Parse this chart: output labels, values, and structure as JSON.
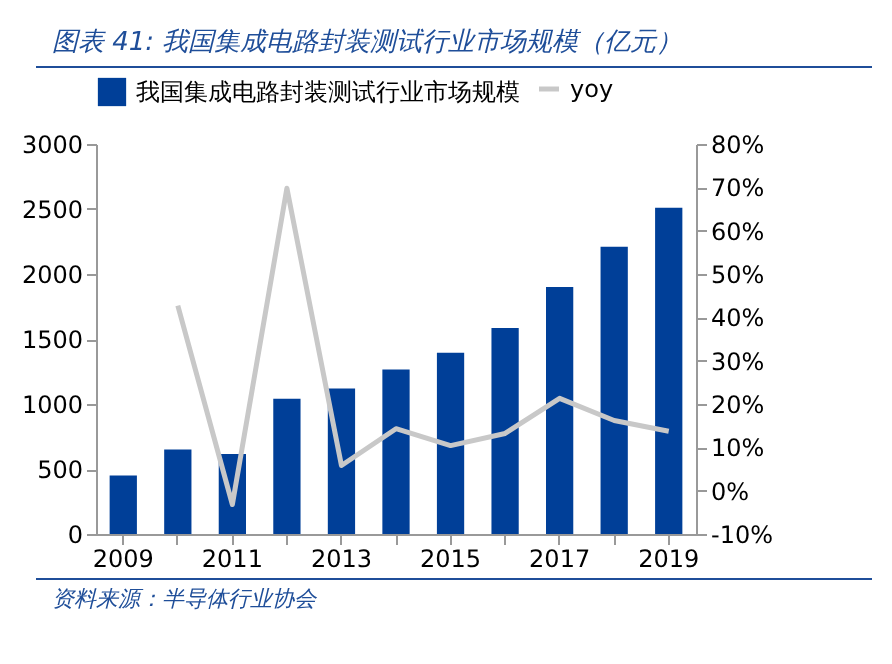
{
  "chart_data": {
    "type": "bar",
    "title": "图表 41: 我国集成电路封装测试行业市场规模（亿元）",
    "annotations": [
      "资料来源：半导体行业协会"
    ],
    "categories": [
      "2009",
      null,
      "2011",
      null,
      "2013",
      null,
      "2015",
      null,
      "2017",
      null,
      "2019"
    ],
    "series": [
      {
        "name": "我国集成电路封装测试行业市场规模",
        "color": "#003f98",
        "values": [
          450,
          650,
          615,
          1040,
          1120,
          1265,
          1395,
          1585,
          1900,
          2210,
          2510
        ]
      },
      {
        "name": "yoy",
        "type": "line",
        "axis": "y2",
        "color": "#c8c8c8",
        "values": [
          null,
          42.7,
          -3.2,
          69.8,
          5.8,
          14.3,
          10.4,
          13.2,
          21.3,
          16.2,
          13.7
        ]
      }
    ],
    "ylim": [
      0,
      3000
    ],
    "yticks": [
      0,
      500,
      1000,
      1500,
      2000,
      2500,
      3000
    ],
    "y2lim": [
      -10,
      80
    ],
    "y2ticks": [
      {
        "value": -10,
        "label": "-10%"
      },
      {
        "value": 0,
        "label": "0%"
      },
      {
        "value": 10,
        "label": "10%"
      },
      {
        "value": 20,
        "label": "20%"
      },
      {
        "value": 30,
        "label": "30%"
      },
      {
        "value": 40,
        "label": "40%"
      },
      {
        "value": 50,
        "label": "50%"
      },
      {
        "value": 60,
        "label": "60%"
      },
      {
        "value": 70,
        "label": "70%"
      },
      {
        "value": 80,
        "label": "80%"
      }
    ],
    "grid": false,
    "legend": "top"
  }
}
